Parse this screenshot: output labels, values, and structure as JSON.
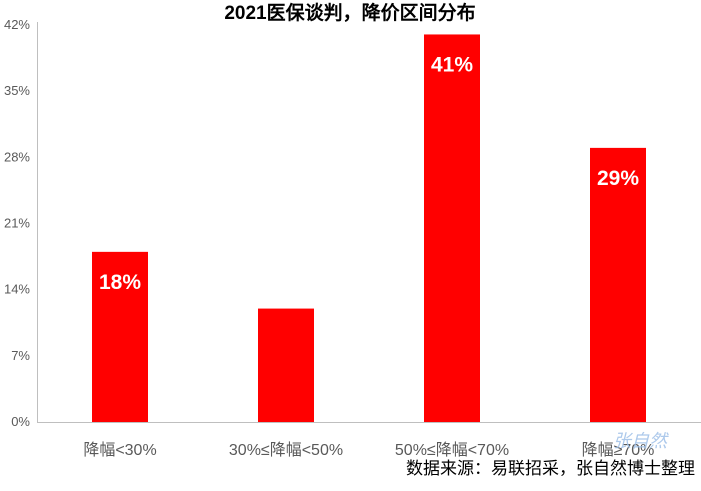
{
  "chart_data": {
    "type": "bar",
    "title": "2021医保谈判，降价区间分布",
    "categories": [
      "降幅<30%",
      "30%≤降幅<50%",
      "50%≤降幅<70%",
      "降幅≥70%"
    ],
    "values": [
      18,
      12,
      41,
      29
    ],
    "data_labels": [
      "18%",
      "",
      "41%",
      "29%"
    ],
    "ylim": [
      0,
      42
    ],
    "yticks": [
      0,
      7,
      14,
      21,
      28,
      35,
      42
    ],
    "ytick_labels": [
      "0%",
      "7%",
      "14%",
      "21%",
      "28%",
      "35%",
      "42%"
    ],
    "bar_color": "#ff0000",
    "grid": false,
    "legend": "none"
  },
  "source_note": "数据来源：易联招采，张自然博士整理",
  "watermark": "张自然"
}
